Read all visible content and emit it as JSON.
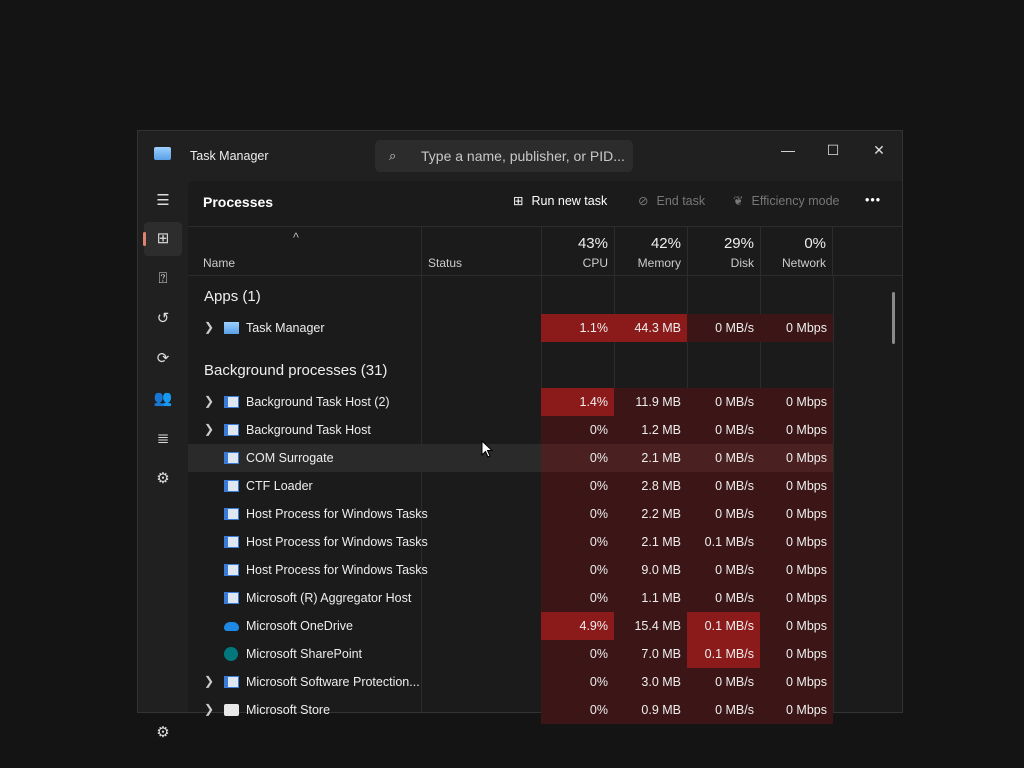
{
  "window": {
    "title": "Task Manager",
    "search_placeholder": "Type a name, publisher, or PID...",
    "minimize": "—",
    "maximize": "☐",
    "close": "✕"
  },
  "sidebar": {
    "items": [
      {
        "icon": "hamburger-icon",
        "glyph": "☰"
      },
      {
        "icon": "processes-icon",
        "glyph": "⊞",
        "active": true
      },
      {
        "icon": "performance-icon",
        "glyph": "⍰"
      },
      {
        "icon": "app-history-icon",
        "glyph": "↺"
      },
      {
        "icon": "startup-apps-icon",
        "glyph": "⟳"
      },
      {
        "icon": "users-icon",
        "glyph": "👥"
      },
      {
        "icon": "details-icon",
        "glyph": "≣"
      },
      {
        "icon": "services-icon",
        "glyph": "⚙"
      }
    ],
    "settings_glyph": "⚙"
  },
  "toolbar": {
    "page_title": "Processes",
    "run_new_task": "Run new task",
    "end_task": "End task",
    "efficiency_mode": "Efficiency mode",
    "more": "•••"
  },
  "columns": {
    "sort_glyph": "^",
    "name": "Name",
    "status": "Status",
    "cpu": {
      "pct": "43%",
      "label": "CPU"
    },
    "memory": {
      "pct": "42%",
      "label": "Memory"
    },
    "disk": {
      "pct": "29%",
      "label": "Disk"
    },
    "network": {
      "pct": "0%",
      "label": "Network"
    }
  },
  "colors": {
    "heat_low": "#3c1616",
    "heat_high": "#8b1b1b",
    "accent": "#e0826f"
  },
  "groups": [
    {
      "label": "Apps (1)",
      "rows": [
        {
          "name": "Task Manager",
          "icon": "tm",
          "expand": true,
          "cpu": "1.1%",
          "memory": "44.3 MB",
          "disk": "0 MB/s",
          "network": "0 Mbps",
          "hot": [
            "cpu",
            "memory"
          ]
        }
      ]
    },
    {
      "label": "Background processes (31)",
      "rows": [
        {
          "name": "Background Task Host (2)",
          "icon": "app",
          "expand": true,
          "cpu": "1.4%",
          "memory": "11.9 MB",
          "disk": "0 MB/s",
          "network": "0 Mbps",
          "hot": [
            "cpu"
          ]
        },
        {
          "name": "Background Task Host",
          "icon": "app",
          "expand": true,
          "cpu": "0%",
          "memory": "1.2 MB",
          "disk": "0 MB/s",
          "network": "0 Mbps",
          "hot": []
        },
        {
          "name": "COM Surrogate",
          "icon": "app",
          "cpu": "0%",
          "memory": "2.1 MB",
          "disk": "0 MB/s",
          "network": "0 Mbps",
          "hot": [],
          "hover": true
        },
        {
          "name": "CTF Loader",
          "icon": "app",
          "cpu": "0%",
          "memory": "2.8 MB",
          "disk": "0 MB/s",
          "network": "0 Mbps",
          "hot": []
        },
        {
          "name": "Host Process for Windows Tasks",
          "icon": "app",
          "cpu": "0%",
          "memory": "2.2 MB",
          "disk": "0 MB/s",
          "network": "0 Mbps",
          "hot": []
        },
        {
          "name": "Host Process for Windows Tasks",
          "icon": "app",
          "cpu": "0%",
          "memory": "2.1 MB",
          "disk": "0.1 MB/s",
          "network": "0 Mbps",
          "hot": []
        },
        {
          "name": "Host Process for Windows Tasks",
          "icon": "app",
          "cpu": "0%",
          "memory": "9.0 MB",
          "disk": "0 MB/s",
          "network": "0 Mbps",
          "hot": []
        },
        {
          "name": "Microsoft (R) Aggregator Host",
          "icon": "app",
          "cpu": "0%",
          "memory": "1.1 MB",
          "disk": "0 MB/s",
          "network": "0 Mbps",
          "hot": []
        },
        {
          "name": "Microsoft OneDrive",
          "icon": "od",
          "cpu": "4.9%",
          "memory": "15.4 MB",
          "disk": "0.1 MB/s",
          "network": "0 Mbps",
          "hot": [
            "cpu",
            "disk"
          ]
        },
        {
          "name": "Microsoft SharePoint",
          "icon": "sp",
          "cpu": "0%",
          "memory": "7.0 MB",
          "disk": "0.1 MB/s",
          "network": "0 Mbps",
          "hot": [
            "disk"
          ]
        },
        {
          "name": "Microsoft Software Protection...",
          "icon": "app",
          "expand": true,
          "cpu": "0%",
          "memory": "3.0 MB",
          "disk": "0 MB/s",
          "network": "0 Mbps",
          "hot": []
        },
        {
          "name": "Microsoft Store",
          "icon": "st",
          "expand": true,
          "cpu": "0%",
          "memory": "0.9 MB",
          "disk": "0 MB/s",
          "network": "0 Mbps",
          "hot": []
        }
      ]
    }
  ]
}
